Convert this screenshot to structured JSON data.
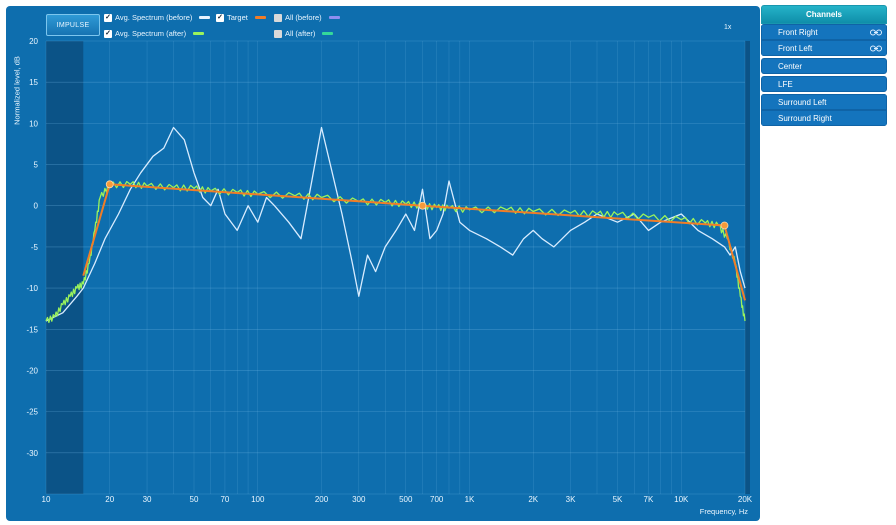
{
  "toolbar": {
    "impulse_label": "IMPULSE",
    "zoom_label": "1x"
  },
  "legend": [
    {
      "label": "Avg. Spectrum (before)",
      "checked": true,
      "color": "#e6f2ff"
    },
    {
      "label": "Target",
      "checked": true,
      "color": "#f07d28"
    },
    {
      "label": "All (before)",
      "checked": false,
      "color": "#8e8ef0"
    },
    {
      "label": "Avg. Spectrum (after)",
      "checked": true,
      "color": "#9af35c"
    },
    {
      "label": "All (after)",
      "checked": false,
      "color": "#34d89a"
    }
  ],
  "channels": {
    "header": "Channels",
    "items": [
      {
        "label": "Front Right",
        "linked": true
      },
      {
        "label": "Front Left",
        "linked": true
      },
      {
        "label": "Center",
        "linked": false
      },
      {
        "label": "LFE",
        "linked": false
      },
      {
        "label": "Surround Left",
        "linked": false
      },
      {
        "label": "Surround Right",
        "linked": false
      }
    ]
  },
  "chart_data": {
    "type": "line",
    "xlabel": "Frequency, Hz",
    "ylabel": "Normalized level, dB",
    "x_scale": "log",
    "xlim": [
      10,
      20000
    ],
    "ylim": [
      -35,
      20
    ],
    "x_ticks": [
      10,
      20,
      30,
      50,
      70,
      100,
      200,
      300,
      500,
      700,
      1000,
      2000,
      3000,
      5000,
      7000,
      10000,
      20000
    ],
    "x_tick_labels": [
      "10",
      "20",
      "30",
      "50",
      "70",
      "100",
      "200",
      "300",
      "500",
      "700",
      "1K",
      "2K",
      "3K",
      "5K",
      "7K",
      "10K",
      "20K"
    ],
    "y_ticks": [
      20,
      15,
      10,
      5,
      0,
      -5,
      -10,
      -15,
      -20,
      -25,
      -30
    ],
    "grid": true,
    "excluded_low_band_hz": [
      10,
      15
    ],
    "series": [
      {
        "name": "Avg. Spectrum (before)",
        "color": "#d8ecff",
        "x": [
          10,
          12,
          14,
          15,
          17,
          19,
          22,
          25,
          28,
          32,
          36,
          40,
          45,
          50,
          55,
          60,
          65,
          70,
          80,
          90,
          100,
          110,
          120,
          140,
          160,
          180,
          200,
          220,
          250,
          280,
          300,
          330,
          360,
          400,
          450,
          500,
          550,
          600,
          650,
          700,
          750,
          800,
          900,
          1000,
          1200,
          1400,
          1600,
          1800,
          2000,
          2200,
          2500,
          3000,
          3500,
          4000,
          5000,
          6000,
          7000,
          8000,
          10000,
          12000,
          14000,
          16000,
          17000,
          18000,
          19000,
          20000
        ],
        "y": [
          -14,
          -13,
          -11,
          -10,
          -7,
          -4,
          -1,
          2,
          4,
          6,
          7,
          9.5,
          8,
          4,
          1,
          0,
          2,
          -1,
          -3,
          0,
          -2,
          1,
          0,
          -2,
          -4,
          3,
          9.5,
          5,
          -1,
          -7,
          -11,
          -6,
          -8,
          -5,
          -3,
          -1,
          -3,
          2,
          -4,
          -3,
          -1,
          3,
          -2,
          -3,
          -4,
          -5,
          -6,
          -4,
          -3,
          -4,
          -5,
          -3,
          -2,
          -1,
          -2,
          -1,
          -3,
          -2,
          -1,
          -3,
          -4,
          -5,
          -6,
          -5,
          -8,
          -10
        ]
      },
      {
        "name": "Avg. Spectrum (after)",
        "color": "#9af35c",
        "x": [
          10,
          11,
          12,
          13,
          14,
          15,
          16,
          17,
          18,
          20,
          25,
          30,
          40,
          50,
          60,
          80,
          100,
          150,
          200,
          300,
          400,
          500,
          600,
          700,
          800,
          1000,
          1500,
          2000,
          3000,
          4000,
          5000,
          7000,
          10000,
          13000,
          15000,
          16500,
          18000,
          19000,
          20000
        ],
        "y": [
          -14,
          -13.5,
          -12,
          -11,
          -10,
          -9.5,
          -7,
          -3,
          1,
          2.5,
          2.6,
          2.4,
          2.2,
          2.1,
          1.8,
          1.6,
          1.4,
          1.2,
          1,
          0.5,
          0.4,
          0.2,
          0,
          -0.2,
          -0.3,
          -0.5,
          -0.5,
          -0.7,
          -0.9,
          -1,
          -1.1,
          -1.4,
          -1.7,
          -2.1,
          -2.4,
          -4,
          -7,
          -11,
          -14
        ]
      },
      {
        "name": "Target",
        "color": "#f07d28",
        "x": [
          15,
          20,
          600,
          16000,
          20000
        ],
        "y": [
          -8.5,
          2.6,
          0,
          -2.4,
          -11.5
        ]
      }
    ],
    "target_points": [
      {
        "x": 20,
        "y": 2.6
      },
      {
        "x": 600,
        "y": 0
      },
      {
        "x": 16000,
        "y": -2.4
      }
    ]
  }
}
